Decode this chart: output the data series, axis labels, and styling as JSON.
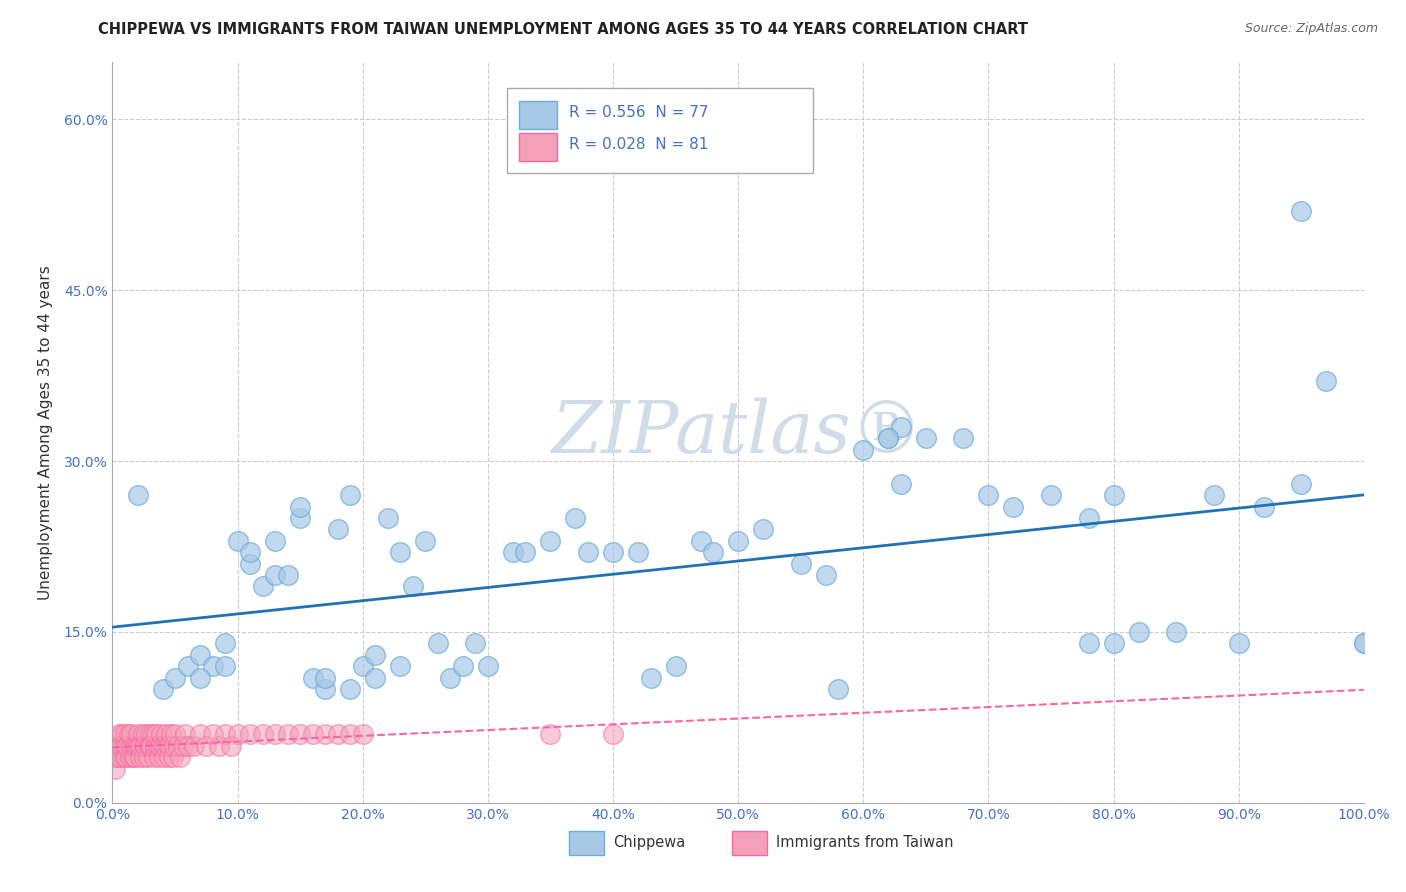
{
  "title": "CHIPPEWA VS IMMIGRANTS FROM TAIWAN UNEMPLOYMENT AMONG AGES 35 TO 44 YEARS CORRELATION CHART",
  "source": "Source: ZipAtlas.com",
  "ylabel": "Unemployment Among Ages 35 to 44 years",
  "xlim": [
    0,
    1.0
  ],
  "ylim": [
    0,
    0.65
  ],
  "xticks": [
    0.0,
    0.1,
    0.2,
    0.3,
    0.4,
    0.5,
    0.6,
    0.7,
    0.8,
    0.9,
    1.0
  ],
  "yticks": [
    0.0,
    0.15,
    0.3,
    0.45,
    0.6
  ],
  "chippewa_R": 0.556,
  "chippewa_N": 77,
  "taiwan_R": 0.028,
  "taiwan_N": 81,
  "chippewa_color": "#a8c8e8",
  "taiwan_color": "#f4a0b8",
  "chippewa_edge_color": "#6baed6",
  "taiwan_edge_color": "#f768a1",
  "chippewa_line_color": "#2171b5",
  "taiwan_line_color": "#f768a1",
  "background_color": "#ffffff",
  "grid_color": "#cccccc",
  "title_color": "#222222",
  "source_color": "#666666",
  "tick_color": "#4472c4",
  "legend_text_color": "#4472c4",
  "watermark_color": "#d0dce8",
  "chippewa_x": [
    0.02,
    0.04,
    0.05,
    0.06,
    0.07,
    0.08,
    0.09,
    0.1,
    0.11,
    0.12,
    0.13,
    0.14,
    0.15,
    0.16,
    0.17,
    0.18,
    0.19,
    0.2,
    0.21,
    0.22,
    0.23,
    0.24,
    0.25,
    0.26,
    0.27,
    0.28,
    0.29,
    0.3,
    0.32,
    0.33,
    0.35,
    0.37,
    0.38,
    0.4,
    0.42,
    0.43,
    0.45,
    0.47,
    0.48,
    0.5,
    0.52,
    0.55,
    0.57,
    0.58,
    0.6,
    0.62,
    0.63,
    0.65,
    0.68,
    0.7,
    0.72,
    0.75,
    0.78,
    0.8,
    0.82,
    0.85,
    0.88,
    0.9,
    0.92,
    0.95,
    0.97,
    1.0,
    0.07,
    0.09,
    0.11,
    0.13,
    0.15,
    0.17,
    0.19,
    0.21,
    0.23,
    0.62,
    0.63,
    0.78,
    0.8,
    0.95,
    1.0
  ],
  "chippewa_y": [
    0.27,
    0.1,
    0.11,
    0.12,
    0.13,
    0.12,
    0.12,
    0.23,
    0.21,
    0.19,
    0.2,
    0.2,
    0.25,
    0.11,
    0.1,
    0.24,
    0.27,
    0.12,
    0.13,
    0.25,
    0.12,
    0.19,
    0.23,
    0.14,
    0.11,
    0.12,
    0.14,
    0.12,
    0.22,
    0.22,
    0.23,
    0.25,
    0.22,
    0.22,
    0.22,
    0.11,
    0.12,
    0.23,
    0.22,
    0.23,
    0.24,
    0.21,
    0.2,
    0.1,
    0.31,
    0.32,
    0.33,
    0.32,
    0.32,
    0.27,
    0.26,
    0.27,
    0.25,
    0.27,
    0.15,
    0.15,
    0.27,
    0.14,
    0.26,
    0.52,
    0.37,
    0.14,
    0.11,
    0.14,
    0.22,
    0.23,
    0.26,
    0.11,
    0.1,
    0.11,
    0.22,
    0.32,
    0.28,
    0.14,
    0.14,
    0.28,
    0.14
  ],
  "taiwan_x": [
    0.001,
    0.002,
    0.003,
    0.004,
    0.005,
    0.005,
    0.006,
    0.007,
    0.008,
    0.009,
    0.01,
    0.01,
    0.011,
    0.012,
    0.013,
    0.014,
    0.015,
    0.015,
    0.016,
    0.017,
    0.018,
    0.019,
    0.02,
    0.02,
    0.021,
    0.022,
    0.023,
    0.024,
    0.025,
    0.025,
    0.026,
    0.027,
    0.028,
    0.029,
    0.03,
    0.03,
    0.031,
    0.032,
    0.033,
    0.034,
    0.035,
    0.036,
    0.037,
    0.038,
    0.039,
    0.04,
    0.041,
    0.042,
    0.043,
    0.044,
    0.045,
    0.046,
    0.047,
    0.048,
    0.049,
    0.05,
    0.052,
    0.054,
    0.056,
    0.058,
    0.06,
    0.065,
    0.07,
    0.075,
    0.08,
    0.085,
    0.09,
    0.095,
    0.1,
    0.11,
    0.12,
    0.13,
    0.14,
    0.15,
    0.16,
    0.17,
    0.18,
    0.19,
    0.2,
    0.35,
    0.4
  ],
  "taiwan_y": [
    0.04,
    0.03,
    0.05,
    0.04,
    0.05,
    0.06,
    0.04,
    0.05,
    0.06,
    0.04,
    0.05,
    0.06,
    0.04,
    0.05,
    0.06,
    0.04,
    0.05,
    0.06,
    0.04,
    0.05,
    0.04,
    0.05,
    0.05,
    0.06,
    0.05,
    0.04,
    0.05,
    0.06,
    0.05,
    0.04,
    0.05,
    0.06,
    0.04,
    0.05,
    0.06,
    0.05,
    0.05,
    0.06,
    0.04,
    0.05,
    0.06,
    0.05,
    0.04,
    0.05,
    0.06,
    0.05,
    0.04,
    0.05,
    0.06,
    0.05,
    0.04,
    0.05,
    0.06,
    0.04,
    0.05,
    0.06,
    0.05,
    0.04,
    0.05,
    0.06,
    0.05,
    0.05,
    0.06,
    0.05,
    0.06,
    0.05,
    0.06,
    0.05,
    0.06,
    0.06,
    0.06,
    0.06,
    0.06,
    0.06,
    0.06,
    0.06,
    0.06,
    0.06,
    0.06,
    0.06,
    0.06
  ]
}
